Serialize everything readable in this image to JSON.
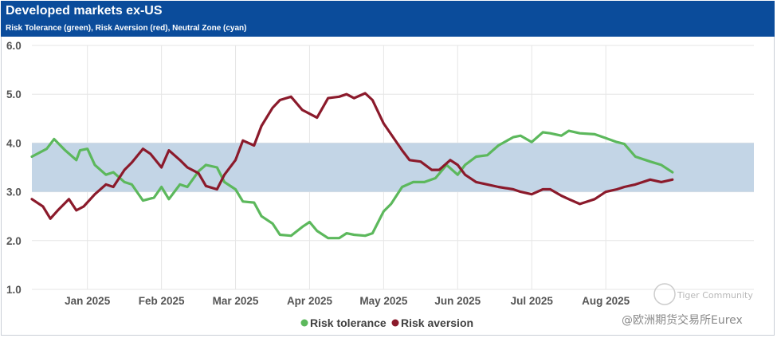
{
  "header": {
    "title": "Developed markets ex-US",
    "subtitle": "Risk Tolerance (green), Risk Aversion (red), Neutral Zone (cyan)"
  },
  "watermark": {
    "community": "Tiger Community",
    "source": "@欧洲期货交易所Eurex"
  },
  "colors": {
    "risk_tolerance": "#5cb85c",
    "risk_aversion": "#8b1a2b",
    "neutral_zone": "#c3d5e6",
    "header_bg": "#0b4c9b"
  },
  "chart_data": {
    "type": "line",
    "title": "Developed markets ex-US",
    "subtitle": "Risk Tolerance (green), Risk Aversion (red), Neutral Zone (cyan)",
    "xlabel": "",
    "ylabel": "",
    "ylim": [
      1.0,
      6.0
    ],
    "yticks": [
      "1.0",
      "2.0",
      "3.0",
      "4.0",
      "5.0",
      "6.0"
    ],
    "xlim": [
      0,
      9.75
    ],
    "x_unit": "months since mid-December 2024",
    "x_tick_labels": [
      {
        "x": 0.75,
        "label": "Jan 2025"
      },
      {
        "x": 1.75,
        "label": "Feb 2025"
      },
      {
        "x": 2.75,
        "label": "Mar 2025"
      },
      {
        "x": 3.75,
        "label": "Apr 2025"
      },
      {
        "x": 4.75,
        "label": "May 2025"
      },
      {
        "x": 5.75,
        "label": "Jun 2025"
      },
      {
        "x": 6.75,
        "label": "Jul 2025"
      },
      {
        "x": 7.75,
        "label": "Aug 2025"
      }
    ],
    "neutral_zone": {
      "low": 3.0,
      "high": 4.0
    },
    "grid": true,
    "legend_position": "bottom-center",
    "series": [
      {
        "name": "Risk tolerance",
        "color": "#5cb85c",
        "x": [
          0.0,
          0.2,
          0.3,
          0.45,
          0.6,
          0.65,
          0.75,
          0.85,
          1.0,
          1.1,
          1.25,
          1.35,
          1.5,
          1.65,
          1.75,
          1.85,
          2.0,
          2.1,
          2.25,
          2.35,
          2.5,
          2.6,
          2.75,
          2.85,
          3.0,
          3.1,
          3.25,
          3.35,
          3.5,
          3.65,
          3.75,
          3.85,
          4.0,
          4.15,
          4.25,
          4.35,
          4.5,
          4.6,
          4.75,
          4.85,
          5.0,
          5.15,
          5.3,
          5.45,
          5.6,
          5.75,
          5.85,
          6.0,
          6.15,
          6.3,
          6.5,
          6.6,
          6.75,
          6.9,
          7.0,
          7.15,
          7.25,
          7.4,
          7.6,
          7.75,
          7.9,
          8.0,
          8.15,
          8.35,
          8.5,
          8.65
        ],
        "values": [
          3.72,
          3.88,
          4.08,
          3.85,
          3.65,
          3.85,
          3.88,
          3.55,
          3.35,
          3.4,
          3.2,
          3.15,
          2.82,
          2.88,
          3.1,
          2.85,
          3.15,
          3.1,
          3.42,
          3.55,
          3.5,
          3.2,
          3.05,
          2.8,
          2.78,
          2.5,
          2.35,
          2.12,
          2.1,
          2.28,
          2.38,
          2.2,
          2.05,
          2.05,
          2.15,
          2.12,
          2.1,
          2.15,
          2.6,
          2.75,
          3.1,
          3.2,
          3.2,
          3.28,
          3.55,
          3.35,
          3.55,
          3.72,
          3.75,
          3.95,
          4.12,
          4.15,
          4.02,
          4.22,
          4.2,
          4.15,
          4.25,
          4.2,
          4.18,
          4.1,
          4.02,
          3.98,
          3.72,
          3.62,
          3.55,
          3.4
        ]
      },
      {
        "name": "Risk aversion",
        "color": "#8b1a2b",
        "x": [
          0.0,
          0.15,
          0.25,
          0.35,
          0.5,
          0.6,
          0.7,
          0.85,
          1.0,
          1.1,
          1.25,
          1.35,
          1.5,
          1.6,
          1.75,
          1.85,
          2.0,
          2.1,
          2.25,
          2.35,
          2.5,
          2.6,
          2.75,
          2.85,
          3.0,
          3.1,
          3.25,
          3.35,
          3.5,
          3.65,
          3.75,
          3.85,
          4.0,
          4.15,
          4.25,
          4.35,
          4.5,
          4.6,
          4.75,
          4.85,
          5.0,
          5.1,
          5.25,
          5.4,
          5.5,
          5.65,
          5.75,
          5.85,
          6.0,
          6.15,
          6.3,
          6.5,
          6.6,
          6.75,
          6.9,
          7.0,
          7.15,
          7.25,
          7.4,
          7.6,
          7.75,
          7.9,
          8.0,
          8.15,
          8.35,
          8.5,
          8.65
        ],
        "values": [
          2.85,
          2.7,
          2.45,
          2.62,
          2.85,
          2.62,
          2.7,
          2.95,
          3.15,
          3.1,
          3.45,
          3.6,
          3.88,
          3.78,
          3.5,
          3.85,
          3.65,
          3.5,
          3.38,
          3.12,
          3.05,
          3.35,
          3.65,
          4.05,
          3.95,
          4.35,
          4.72,
          4.88,
          4.95,
          4.68,
          4.6,
          4.52,
          4.92,
          4.95,
          5.0,
          4.92,
          5.02,
          4.88,
          4.4,
          4.18,
          3.85,
          3.65,
          3.62,
          3.45,
          3.45,
          3.65,
          3.55,
          3.35,
          3.2,
          3.15,
          3.1,
          3.05,
          3.0,
          2.95,
          3.05,
          3.05,
          2.92,
          2.85,
          2.75,
          2.85,
          3.0,
          3.05,
          3.1,
          3.15,
          3.25,
          3.2,
          3.25
        ]
      }
    ]
  }
}
